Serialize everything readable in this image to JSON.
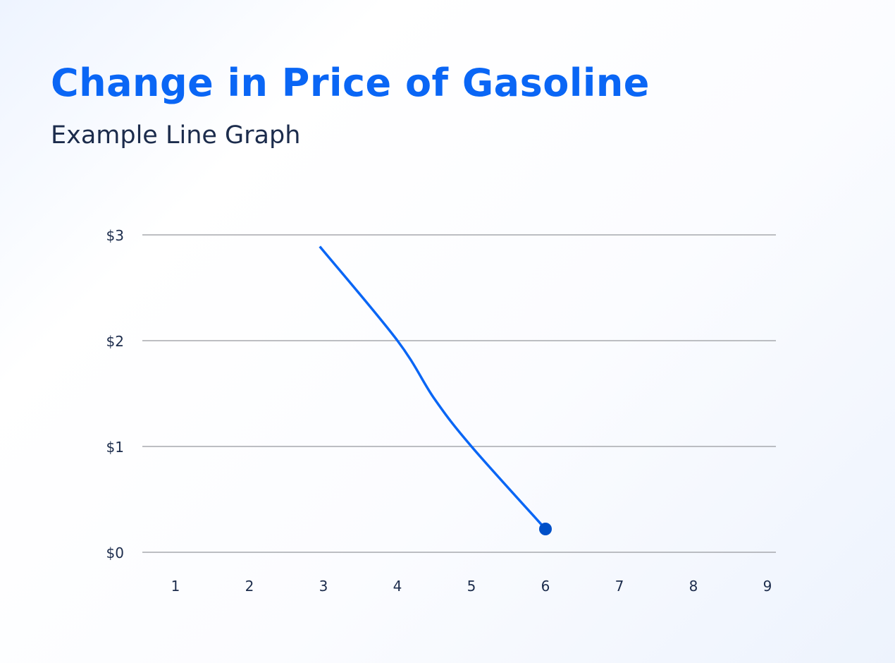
{
  "chart_data": {
    "type": "line",
    "title": "Change in Price of Gasoline",
    "subtitle": "Example Line Graph",
    "xlabel": "",
    "ylabel": "",
    "x_ticks": [
      "1",
      "2",
      "3",
      "4",
      "5",
      "6",
      "7",
      "8",
      "9"
    ],
    "y_ticks": [
      "$0",
      "$1",
      "$2",
      "$3"
    ],
    "xlim": [
      1,
      9
    ],
    "ylim": [
      0,
      3
    ],
    "grid": "horizontal",
    "series": [
      {
        "x": [
          2.95,
          4,
          4.5,
          5,
          6
        ],
        "y": [
          2.89,
          2.0,
          1.45,
          1.0,
          0.22
        ],
        "color": "#0a66f5",
        "end_marker": true
      }
    ]
  },
  "colors": {
    "title": "#0a66f5",
    "line": "#0a66f5",
    "marker": "#0050c8",
    "grid": "#a7a9ae",
    "text": "#1c2c4c"
  }
}
